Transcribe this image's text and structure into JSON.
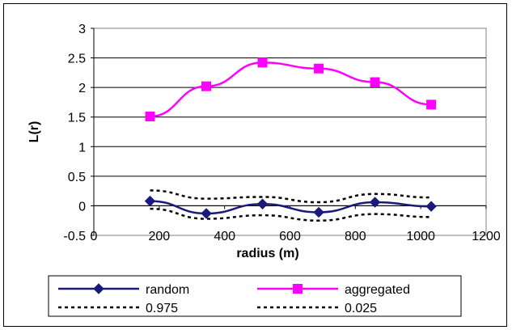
{
  "chart_data": {
    "type": "line",
    "xlabel": "radius (m)",
    "ylabel": "L(r)",
    "xlim": [
      0,
      1200
    ],
    "ylim": [
      -0.5,
      3
    ],
    "x_ticks": [
      "0",
      "200",
      "400",
      "600",
      "800",
      "1000",
      "1200"
    ],
    "y_ticks": [
      "-0.5",
      "0",
      "0.5",
      "1",
      "1.5",
      "2",
      "2.5",
      "3"
    ],
    "grid": "horizontal",
    "legend_position": "bottom",
    "series": [
      {
        "name": "random",
        "color": "#1a1a7a",
        "marker": "diamond",
        "line": "solid",
        "x": [
          172,
          344,
          516,
          688,
          860,
          1032
        ],
        "values": [
          0.08,
          -0.13,
          0.03,
          -0.11,
          0.06,
          -0.01
        ]
      },
      {
        "name": "aggregated",
        "color": "#ff00ff",
        "marker": "square",
        "line": "solid",
        "x": [
          172,
          344,
          516,
          688,
          860,
          1032
        ],
        "values": [
          1.51,
          2.02,
          2.42,
          2.32,
          2.09,
          1.71
        ]
      },
      {
        "name": "0.975",
        "color": "#000000",
        "marker": "none",
        "line": "dashed",
        "x": [
          172,
          344,
          516,
          688,
          860,
          1032
        ],
        "values": [
          0.26,
          0.12,
          0.15,
          0.06,
          0.2,
          0.14
        ]
      },
      {
        "name": "0.025",
        "color": "#000000",
        "marker": "none",
        "line": "dashed",
        "x": [
          172,
          344,
          516,
          688,
          860,
          1032
        ],
        "values": [
          -0.05,
          -0.22,
          -0.16,
          -0.25,
          -0.14,
          -0.19
        ]
      }
    ]
  }
}
